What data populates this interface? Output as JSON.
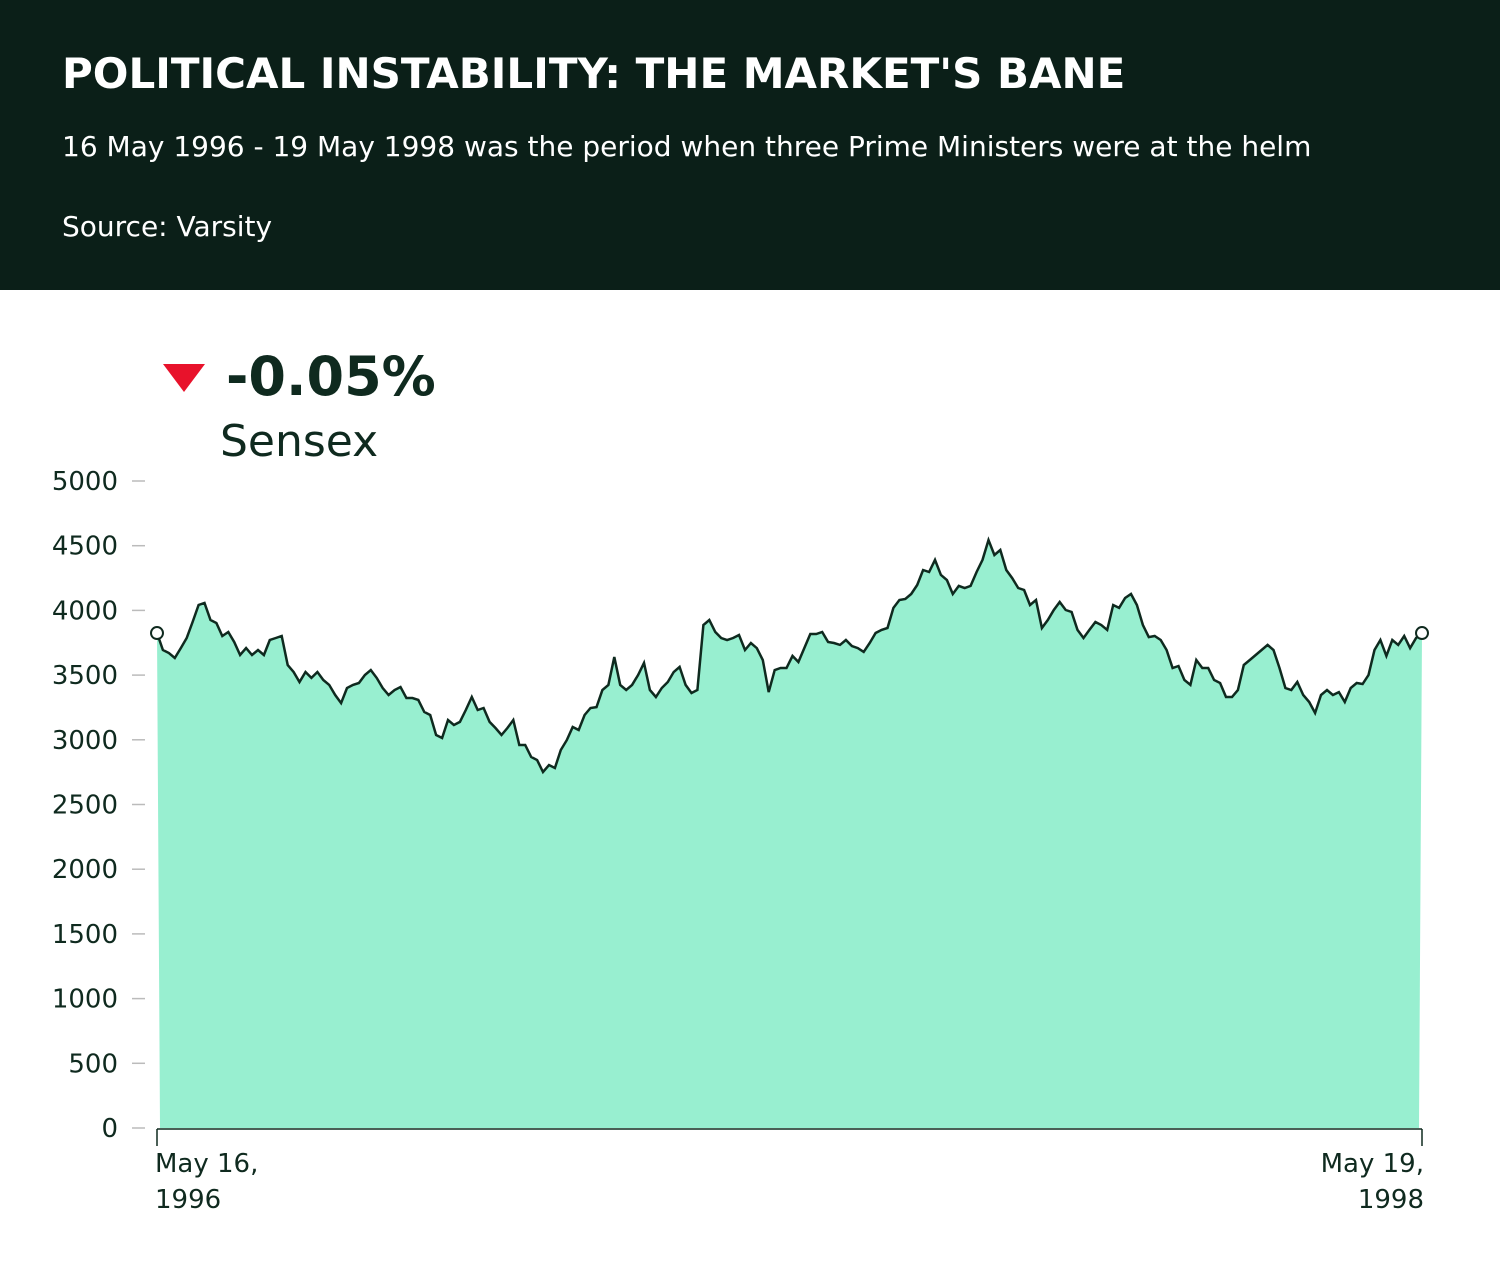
{
  "header": {
    "title": "POLITICAL INSTABILITY: THE MARKET'S BANE",
    "subtitle": "16 May 1996 - 19 May 1998 was the period when three Prime Ministers were at the helm",
    "source": "Source: Varsity"
  },
  "chart_data": {
    "type": "area",
    "series_name": "Sensex",
    "change": "-0.05%",
    "line_color": "#0f2a1f",
    "fill_color": "#98efd0",
    "change_color": "#e8122b",
    "ylim": [
      0,
      5000
    ],
    "yticks": [
      0,
      500,
      1000,
      1500,
      2000,
      2500,
      3000,
      3500,
      4000,
      4500,
      5000
    ],
    "categories": [
      "May 16, 1996",
      null,
      null,
      null,
      null,
      null,
      null,
      null,
      null,
      null,
      null,
      null,
      null,
      null,
      null,
      null,
      null,
      null,
      null,
      null,
      null,
      null,
      null,
      null,
      null,
      null,
      null,
      null,
      null,
      null,
      null,
      null,
      null,
      null,
      null,
      null,
      null,
      null,
      null,
      null,
      null,
      null,
      null,
      null,
      null,
      null,
      null,
      null,
      null,
      null,
      null,
      null,
      null,
      null,
      null,
      null,
      null,
      null,
      null,
      null,
      null,
      null,
      null,
      null,
      null,
      null,
      null,
      null,
      null,
      null,
      null,
      null,
      null,
      null,
      null,
      null,
      null,
      null,
      null,
      null,
      null,
      null,
      null,
      null,
      null,
      null,
      null,
      null,
      null,
      null,
      null,
      null,
      null,
      null,
      null,
      null,
      null,
      null,
      null,
      null,
      null,
      null,
      null,
      null,
      null,
      null,
      null,
      null,
      null,
      null,
      null,
      null,
      null,
      null,
      null,
      null,
      null,
      null,
      null,
      null,
      null,
      null,
      null,
      null,
      null,
      null,
      null,
      null,
      null,
      null,
      null,
      null,
      null,
      null,
      null,
      null,
      null,
      null,
      null,
      null,
      null,
      null,
      null,
      null,
      null,
      null,
      null,
      null,
      null,
      null,
      null,
      null,
      null,
      null,
      null,
      null,
      null,
      null,
      null,
      null,
      null,
      null,
      null,
      null,
      null,
      null,
      null,
      null,
      null,
      null,
      null,
      null,
      null,
      null,
      null,
      null,
      null,
      null,
      null,
      null,
      null,
      null,
      null,
      null,
      null,
      null,
      null,
      null,
      null,
      null,
      null,
      null,
      null,
      null,
      null,
      null,
      null,
      null,
      null,
      null,
      null,
      null,
      null,
      null,
      null,
      null,
      null,
      null,
      null,
      null,
      null,
      null,
      null,
      "May 19, 1998"
    ],
    "values": [
      3825,
      3694,
      3671,
      3632,
      3709,
      3787,
      3910,
      4042,
      4057,
      3926,
      3903,
      3802,
      3833,
      3756,
      3655,
      3709,
      3655,
      3694,
      3655,
      3771,
      3787,
      3802,
      3578,
      3524,
      3447,
      3524,
      3478,
      3524,
      3462,
      3424,
      3346,
      3284,
      3400,
      3424,
      3439,
      3501,
      3539,
      3478,
      3400,
      3346,
      3385,
      3408,
      3323,
      3323,
      3308,
      3215,
      3192,
      3037,
      3014,
      3153,
      3114,
      3138,
      3230,
      3331,
      3230,
      3246,
      3138,
      3091,
      3037,
      3091,
      3153,
      2960,
      2960,
      2867,
      2844,
      2751,
      2805,
      2782,
      2921,
      2998,
      3099,
      3076,
      3192,
      3246,
      3253,
      3385,
      3424,
      3640,
      3424,
      3385,
      3424,
      3501,
      3594,
      3385,
      3331,
      3400,
      3447,
      3524,
      3563,
      3424,
      3362,
      3385,
      3887,
      3926,
      3833,
      3787,
      3771,
      3787,
      3810,
      3694,
      3748,
      3709,
      3617,
      3369,
      3539,
      3555,
      3555,
      3648,
      3601,
      3709,
      3818,
      3818,
      3833,
      3756,
      3748,
      3733,
      3771,
      3725,
      3709,
      3679,
      3748,
      3825,
      3849,
      3864,
      4019,
      4080,
      4088,
      4127,
      4196,
      4312,
      4297,
      4390,
      4274,
      4235,
      4127,
      4189,
      4173,
      4189,
      4297,
      4390,
      4544,
      4428,
      4467,
      4312,
      4250,
      4173,
      4158,
      4042,
      4080,
      3864,
      3926,
      4003,
      4065,
      4003,
      3988,
      3849,
      3787,
      3849,
      3910,
      3887,
      3849,
      4042,
      4019,
      4096,
      4127,
      4042,
      3887,
      3794,
      3802,
      3771,
      3694,
      3555,
      3570,
      3462,
      3424,
      3617,
      3555,
      3555,
      3462,
      3439,
      3331,
      3331,
      3385,
      3578,
      3617,
      3655,
      3694,
      3733,
      3694,
      3555,
      3400,
      3385,
      3447,
      3346,
      3292,
      3207,
      3346,
      3385,
      3346,
      3369,
      3292,
      3400,
      3439,
      3431,
      3501,
      3694,
      3771,
      3648,
      3771,
      3733,
      3802,
      3709,
      3787,
      3825
    ]
  }
}
